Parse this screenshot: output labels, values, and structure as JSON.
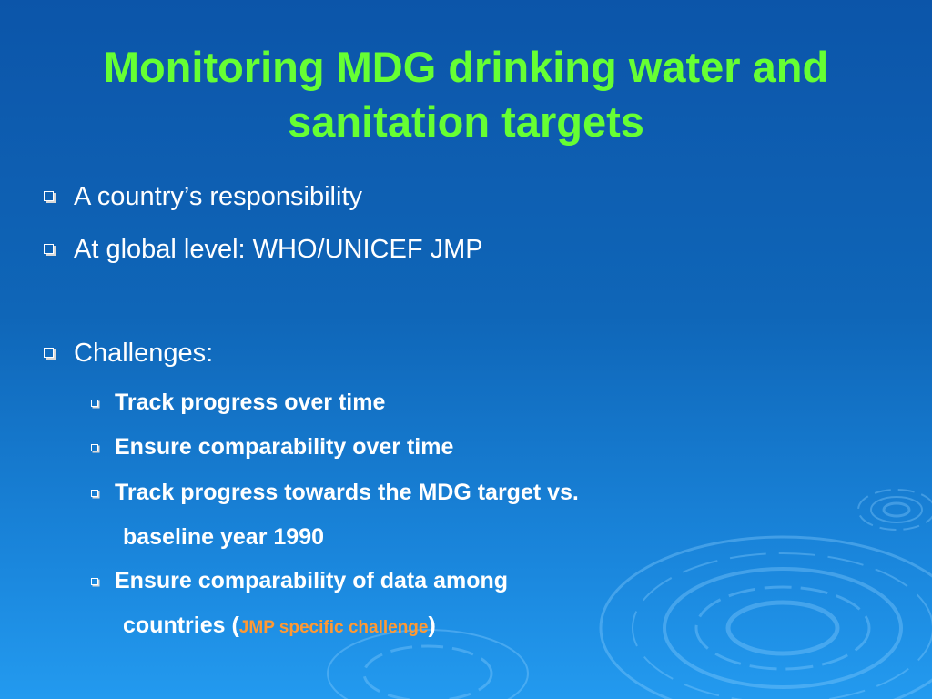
{
  "slide": {
    "title": "Monitoring MDG drinking water and sanitation targets",
    "bullets": {
      "responsibility": "A country’s responsibility",
      "global_level": "At global level: WHO/UNICEF JMP",
      "challenges": "Challenges:"
    },
    "sub_bullets": {
      "track_progress": "Track progress over time",
      "ensure_comparability": "Ensure comparability over time",
      "track_target_line1": "Track progress towards the MDG target vs.",
      "track_target_line2": "baseline year 1990",
      "comparability_countries_line1": "Ensure comparability of data among",
      "countries_prefix": "countries (",
      "jmp_specific": "JMP specific challenge",
      "countries_suffix": ")"
    }
  },
  "colors": {
    "title": "#66ff33",
    "body_text": "#ffffff",
    "accent": "#ff9933",
    "background_top": "#0c55a9",
    "background_bottom": "#239aef"
  },
  "icons": {
    "bullet": "hollow-square-bullet-icon",
    "decoration": "water-ripple-decoration"
  }
}
